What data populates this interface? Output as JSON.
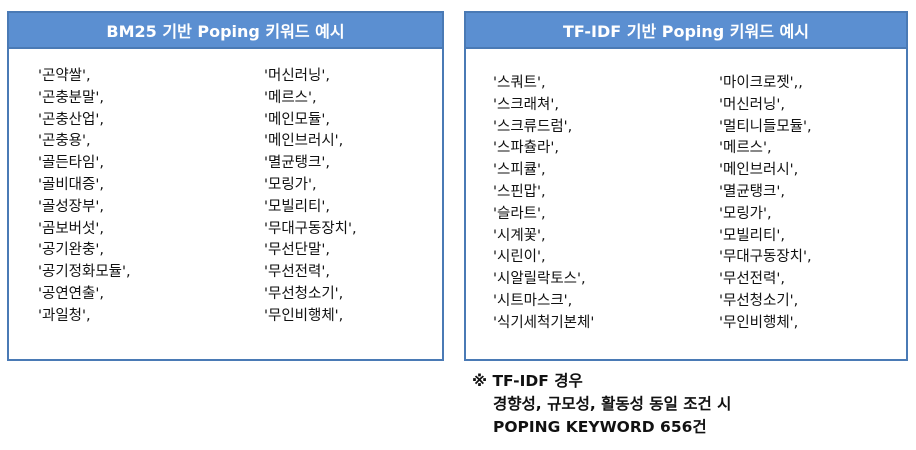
{
  "left_panel": {
    "title": "BM25 기반 Poping 키워드 예시",
    "col1": [
      "'곤약쌀',",
      "'곤충분말',",
      "'곤충산업',",
      "'곤충용',",
      "'골든타임',",
      "'골비대증',",
      "'골성장부',",
      "'곰보버섯',",
      "'공기완충',",
      "'공기정화모듈',",
      "'공연연출',",
      "'과일청',"
    ],
    "col2": [
      "'머신러닝',",
      "'메르스',",
      "'메인모듈',",
      "'메인브러시',",
      "'멸균탱크',",
      "'모링가',",
      "'모빌리티',",
      "'무대구동장치',",
      "'무선단말',",
      "'무선전력',",
      "'무선청소기',",
      "'무인비행체',"
    ]
  },
  "right_panel": {
    "title": "TF-IDF 기반 Poping 키워드 예시",
    "col1": [
      "'스쿼트',",
      "'스크래쳐',",
      "'스크류드럼',",
      "'스파츌라',",
      "'스피큘',",
      "'스핀맙',",
      "'슬라트',",
      "'시계꽃',",
      "'시린이',",
      "'시알릴락토스',",
      "'시트마스크',",
      "'식기세척기본체'"
    ],
    "col2": [
      "'마이크로젯',,",
      "'머신러닝',",
      "'멀티니들모듈',",
      "'메르스',",
      "'메인브러시',",
      "'멸균탱크',",
      "'모링가',",
      "'모빌리티',",
      "'무대구동장치',",
      "'무선전력',",
      "'무선청소기',",
      "'무인비행체',"
    ]
  },
  "note": {
    "line1": "※ TF-IDF 경우",
    "line2": "경향성, 규모성, 활동성 동일 조건 시",
    "line3": "POPING KEYWORD 656건"
  }
}
